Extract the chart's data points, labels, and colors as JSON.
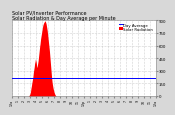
{
  "title": "Solar PV/Inverter Performance\nSolar Radiation & Day Average per Minute",
  "title_fontsize": 3.5,
  "bg_color": "#d8d8d8",
  "plot_bg_color": "#ffffff",
  "bar_color": "#ff0000",
  "avg_line_color": "#0000ff",
  "avg_value": 220,
  "ylim": [
    0,
    900
  ],
  "yticks": [
    0,
    150,
    300,
    450,
    600,
    750,
    900
  ],
  "ytick_fontsize": 2.8,
  "xtick_fontsize": 2.3,
  "grid_color": "#aaaaaa",
  "legend_fontsize": 2.8,
  "bar_data": [
    0,
    0,
    0,
    0,
    0,
    0,
    0,
    0,
    0,
    0,
    0,
    0,
    0,
    0,
    0,
    0,
    0,
    0,
    0,
    0,
    0,
    0,
    0,
    0,
    0,
    0,
    0,
    0,
    0,
    0,
    0,
    0,
    0,
    0,
    0,
    0,
    0,
    0,
    0,
    0,
    0,
    0,
    0,
    0,
    0,
    0,
    0,
    0,
    0,
    0,
    0,
    0,
    0,
    0,
    0,
    0,
    0,
    0,
    0,
    0,
    2,
    5,
    8,
    12,
    18,
    25,
    35,
    50,
    70,
    95,
    110,
    130,
    155,
    170,
    190,
    210,
    230,
    260,
    290,
    310,
    330,
    350,
    380,
    400,
    410,
    440,
    430,
    420,
    400,
    380,
    350,
    340,
    360,
    380,
    400,
    420,
    450,
    480,
    510,
    540,
    570,
    600,
    620,
    650,
    680,
    700,
    720,
    740,
    760,
    780,
    800,
    820,
    840,
    850,
    860,
    870,
    875,
    880,
    885,
    890,
    895,
    890,
    880,
    870,
    860,
    840,
    820,
    800,
    780,
    750,
    720,
    690,
    660,
    630,
    600,
    570,
    540,
    500,
    460,
    420,
    380,
    340,
    300,
    260,
    220,
    190,
    160,
    140,
    120,
    100,
    85,
    70,
    58,
    47,
    37,
    28,
    20,
    14,
    9,
    5,
    2,
    1,
    0,
    0,
    0,
    0,
    0,
    0,
    0,
    0,
    0,
    0,
    0,
    0,
    0,
    0,
    0,
    0,
    0,
    0,
    0,
    0,
    0,
    0,
    0,
    0,
    0,
    0,
    0,
    0,
    0,
    0,
    0,
    0,
    0,
    0,
    0,
    0,
    0,
    0,
    0,
    0,
    0,
    0,
    0,
    0,
    0,
    0,
    0,
    0,
    0,
    0,
    0,
    0,
    0,
    0,
    0,
    0,
    0,
    0,
    0,
    0,
    0,
    0,
    0,
    0,
    0,
    0,
    0,
    0,
    0,
    0,
    0,
    0,
    0,
    0,
    0,
    0,
    0,
    0,
    0,
    0,
    0,
    0,
    0,
    0,
    0,
    0,
    0,
    0,
    0,
    0,
    0,
    0,
    0,
    0,
    0,
    0,
    0,
    0,
    0,
    0,
    0,
    0,
    0,
    0,
    0,
    0,
    0,
    0,
    0,
    0,
    0,
    0,
    0,
    0,
    0,
    0,
    0,
    0,
    0,
    0,
    0,
    0,
    0,
    0,
    0,
    0,
    0,
    0,
    0,
    0,
    0,
    0,
    0,
    0,
    0,
    0,
    0,
    0,
    0,
    0,
    0,
    0,
    0,
    0,
    0,
    0,
    0,
    0,
    0,
    0,
    0,
    0,
    0,
    0,
    0,
    0,
    0,
    0,
    0,
    0,
    0,
    0,
    0,
    0,
    0,
    0,
    0,
    0,
    0,
    0,
    0,
    0,
    0,
    0,
    0,
    0,
    0,
    0,
    0,
    0,
    0,
    0,
    0,
    0,
    0,
    0,
    0,
    0,
    0,
    0,
    0,
    0,
    0,
    0,
    0,
    0,
    0,
    0,
    0,
    0,
    0,
    0,
    0,
    0,
    0,
    0,
    0,
    0,
    0,
    0,
    0,
    0,
    0,
    0,
    0,
    0,
    0,
    0,
    0,
    0,
    0,
    0,
    0,
    0,
    0,
    0,
    0,
    0,
    0,
    0,
    0,
    0,
    0,
    0,
    0,
    0,
    0,
    0,
    0,
    0,
    0,
    0,
    0,
    0,
    0,
    0,
    0,
    0,
    0,
    0,
    0,
    0,
    0,
    0,
    0,
    0,
    0,
    0,
    0,
    0,
    0,
    0,
    0,
    0,
    0,
    0,
    0,
    0,
    0,
    0,
    0,
    0,
    0,
    0,
    0,
    0,
    0,
    0,
    0,
    0,
    0,
    0,
    0,
    0,
    0,
    0,
    0,
    0,
    0,
    0,
    0,
    0,
    0,
    0,
    0,
    0,
    0,
    0,
    0,
    0,
    0,
    0,
    0,
    0,
    0,
    0,
    0,
    0,
    0,
    0,
    0,
    0,
    0,
    0,
    0,
    0,
    0,
    0,
    0,
    0,
    0,
    0,
    0,
    0,
    0,
    0,
    0,
    0,
    0,
    0,
    0,
    0,
    0,
    0,
    0,
    0,
    0,
    0,
    0,
    0,
    0,
    0,
    0,
    0,
    0,
    0,
    0,
    0,
    0,
    0,
    0,
    0,
    0,
    0,
    0,
    0,
    0,
    0,
    0,
    0,
    0
  ],
  "xtick_labels": [
    "12a",
    "1",
    "2",
    "3",
    "4",
    "5",
    "6",
    "7",
    "8",
    "9",
    "10",
    "11",
    "12p",
    "1",
    "2",
    "3",
    "4",
    "5",
    "6",
    "7",
    "8",
    "9",
    "10",
    "11",
    "12a"
  ],
  "legend_items": [
    {
      "label": "Day Average",
      "color": "#0000ff"
    },
    {
      "label": "Solar Radiation",
      "color": "#ff0000"
    }
  ]
}
